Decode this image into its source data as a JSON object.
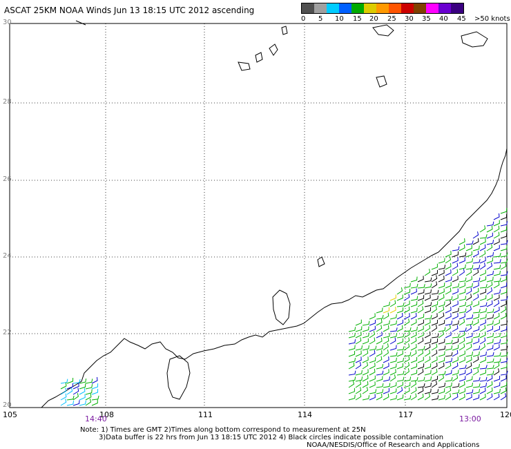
{
  "header": {
    "title": "ASCAT 25KM NOAA Winds Jun 13 18:15 UTC 2012 ascending"
  },
  "legend": {
    "colors": [
      "#505050",
      "#a0a0a0",
      "#00ccff",
      "#0060ff",
      "#00aa00",
      "#ddcc00",
      "#ff9900",
      "#ff5500",
      "#cc0000",
      "#804000",
      "#ff00ff",
      "#6a00d0",
      "#3a0080"
    ],
    "labels": [
      "0",
      "5",
      "10",
      "15",
      "20",
      "25",
      "30",
      "35",
      "40",
      "45",
      ">50 knots"
    ]
  },
  "axes": {
    "lat_labels": [
      "30",
      "28",
      "26",
      "24",
      "22",
      "20"
    ],
    "lon_labels": [
      "105",
      "108",
      "111",
      "114",
      "117",
      "120"
    ]
  },
  "pass_times": {
    "left": "14:40",
    "right": "13:00"
  },
  "footer": {
    "note1": "Note: 1) Times are GMT 2)Times along bottom correspond to measurement at 25N",
    "note2": "3)Data buffer is 22 hrs from Jun 13 18:15 UTC 2012 4) Black circles indicate possible contamination",
    "credit": "NOAA/NESDIS/Office of Research and Applications"
  },
  "wind_colors": {
    "black": "#000000",
    "green": "#00b000",
    "blue": "#0000cc",
    "cyan": "#00c0ff",
    "yellow": "#e6d200"
  }
}
